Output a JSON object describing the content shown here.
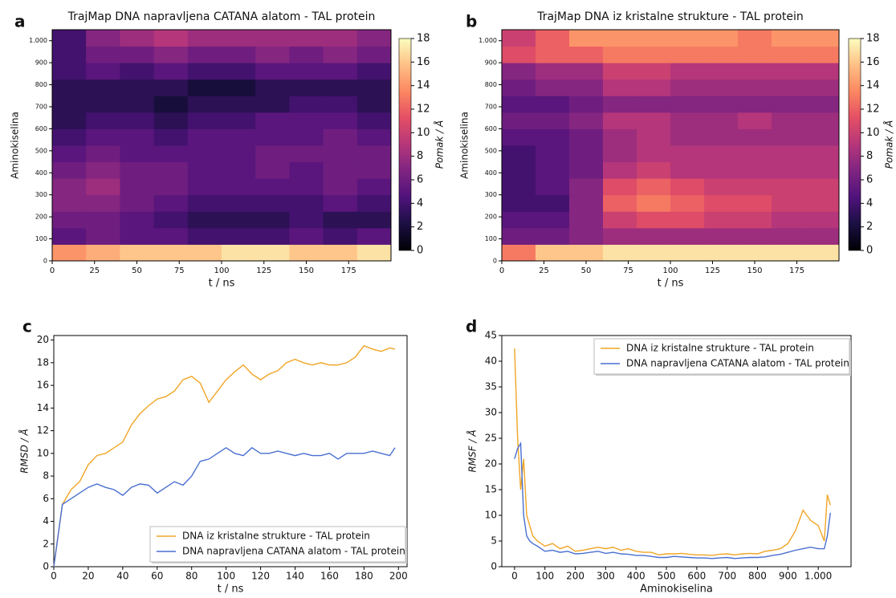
{
  "chart_data": [
    {
      "type": "heatmap",
      "panel_label": "a",
      "title": "TrajMap DNA napravljena CATANA alatom - TAL protein",
      "xlabel": "t / ns",
      "ylabel": "Aminokiselina",
      "colorbar_label": "Pomak / Å",
      "colormap": "magma",
      "x_bins": [
        0,
        20,
        40,
        60,
        80,
        100,
        120,
        140,
        160,
        180,
        200
      ],
      "y_bins": [
        0,
        75,
        150,
        225,
        300,
        375,
        450,
        525,
        600,
        675,
        750,
        825,
        900,
        975,
        1050
      ],
      "xlim": [
        0,
        200
      ],
      "ylim": [
        0,
        1050
      ],
      "clim": [
        0,
        18
      ],
      "xticks": [
        0,
        25,
        50,
        75,
        100,
        125,
        150,
        175
      ],
      "yticks": [
        0,
        100,
        200,
        300,
        400,
        500,
        600,
        700,
        800,
        900,
        {
          "value": 1000,
          "label": "1.000"
        }
      ],
      "cticks": [
        0,
        2,
        4,
        6,
        8,
        10,
        12,
        14,
        16,
        18
      ],
      "z": [
        [
          14,
          15,
          16,
          16,
          16,
          17,
          17,
          16,
          16,
          17
        ],
        [
          5,
          6,
          5,
          5,
          4,
          4,
          4,
          5,
          4,
          5
        ],
        [
          6,
          6,
          5,
          4,
          3,
          3,
          3,
          4,
          3,
          3
        ],
        [
          7,
          7,
          6,
          5,
          4,
          4,
          4,
          4,
          5,
          4
        ],
        [
          7,
          8,
          6,
          6,
          5,
          5,
          5,
          5,
          6,
          5
        ],
        [
          6,
          7,
          6,
          6,
          5,
          5,
          6,
          5,
          6,
          6
        ],
        [
          5,
          6,
          5,
          5,
          5,
          5,
          6,
          6,
          6,
          6
        ],
        [
          4,
          5,
          5,
          4,
          5,
          5,
          5,
          5,
          6,
          5
        ],
        [
          3,
          4,
          4,
          3,
          4,
          4,
          5,
          5,
          5,
          4
        ],
        [
          3,
          3,
          3,
          2,
          3,
          3,
          3,
          4,
          4,
          3
        ],
        [
          3,
          3,
          3,
          3,
          2,
          2,
          3,
          3,
          3,
          3
        ],
        [
          4,
          5,
          4,
          5,
          4,
          4,
          5,
          5,
          5,
          4
        ],
        [
          4,
          6,
          6,
          7,
          6,
          6,
          7,
          6,
          7,
          6
        ],
        [
          4,
          7,
          8,
          9,
          8,
          8,
          8,
          8,
          8,
          7
        ]
      ]
    },
    {
      "type": "heatmap",
      "panel_label": "b",
      "title": "TrajMap DNA iz kristalne strukture - TAL protein",
      "xlabel": "t / ns",
      "ylabel": "Aminokiselina",
      "colorbar_label": "Pomak / Å",
      "colormap": "magma",
      "x_bins": [
        0,
        20,
        40,
        60,
        80,
        100,
        120,
        140,
        160,
        180,
        200
      ],
      "y_bins": [
        0,
        75,
        150,
        225,
        300,
        375,
        450,
        525,
        600,
        675,
        750,
        825,
        900,
        975,
        1050
      ],
      "xlim": [
        0,
        200
      ],
      "ylim": [
        0,
        1050
      ],
      "clim": [
        0,
        18
      ],
      "xticks": [
        0,
        25,
        50,
        75,
        100,
        125,
        150,
        175
      ],
      "yticks": [
        0,
        100,
        200,
        300,
        400,
        500,
        600,
        700,
        800,
        900,
        {
          "value": 1000,
          "label": "1.000"
        }
      ],
      "cticks": [
        0,
        2,
        4,
        6,
        8,
        10,
        12,
        14,
        16,
        18
      ],
      "z": [
        [
          13,
          16,
          16,
          17,
          17,
          17,
          17,
          17,
          17,
          17
        ],
        [
          6,
          6,
          7,
          8,
          8,
          8,
          8,
          8,
          8,
          8
        ],
        [
          5,
          5,
          7,
          10,
          11,
          11,
          10,
          10,
          9,
          9
        ],
        [
          4,
          4,
          7,
          12,
          13,
          12,
          11,
          11,
          10,
          10
        ],
        [
          4,
          5,
          7,
          11,
          12,
          11,
          10,
          10,
          10,
          10
        ],
        [
          4,
          5,
          6,
          9,
          10,
          9,
          9,
          9,
          9,
          9
        ],
        [
          4,
          5,
          6,
          8,
          9,
          9,
          9,
          9,
          9,
          9
        ],
        [
          5,
          5,
          6,
          8,
          9,
          8,
          8,
          8,
          8,
          8
        ],
        [
          6,
          6,
          7,
          9,
          9,
          8,
          8,
          9,
          8,
          8
        ],
        [
          5,
          5,
          6,
          7,
          7,
          7,
          7,
          7,
          7,
          7
        ],
        [
          6,
          7,
          7,
          9,
          9,
          8,
          8,
          8,
          8,
          8
        ],
        [
          7,
          8,
          8,
          10,
          10,
          9,
          9,
          9,
          9,
          9
        ],
        [
          11,
          12,
          12,
          13,
          13,
          13,
          13,
          13,
          13,
          13
        ],
        [
          10,
          12,
          14,
          14,
          14,
          14,
          14,
          13,
          14,
          14
        ]
      ]
    },
    {
      "type": "line",
      "panel_label": "c",
      "xlabel": "t / ns",
      "ylabel": "RMSD / Å",
      "legend": "lower right",
      "xlim": [
        0,
        205
      ],
      "ylim": [
        0,
        20.4
      ],
      "xticks": [
        0,
        20,
        40,
        60,
        80,
        100,
        120,
        140,
        160,
        180,
        200
      ],
      "yticks": [
        0,
        2,
        4,
        6,
        8,
        10,
        12,
        14,
        16,
        18,
        20
      ],
      "x": [
        0,
        5,
        10,
        15,
        20,
        25,
        30,
        35,
        40,
        45,
        50,
        55,
        60,
        65,
        70,
        75,
        80,
        85,
        90,
        95,
        100,
        105,
        110,
        115,
        120,
        125,
        130,
        135,
        140,
        145,
        150,
        155,
        160,
        165,
        170,
        175,
        180,
        185,
        190,
        195,
        198
      ],
      "series": [
        {
          "name": "DNA iz kristalne strukture - TAL protein",
          "color": "#f0a526",
          "values": [
            0,
            5.5,
            6.8,
            7.5,
            9,
            9.8,
            10,
            10.5,
            11,
            12.5,
            13.5,
            14.2,
            14.8,
            15,
            15.5,
            16.5,
            16.8,
            16.2,
            14.5,
            15.5,
            16.5,
            17.2,
            17.8,
            17,
            16.5,
            17,
            17.3,
            18,
            18.3,
            18,
            17.8,
            18,
            17.8,
            17.8,
            18,
            18.5,
            19.5,
            19.2,
            19,
            19.3,
            19.2
          ]
        },
        {
          "name": "DNA napravljena CATANA alatom - TAL protein",
          "color": "#4a6fd0",
          "values": [
            0,
            5.5,
            6,
            6.5,
            7,
            7.3,
            7,
            6.8,
            6.3,
            7,
            7.3,
            7.2,
            6.5,
            7,
            7.5,
            7.2,
            8,
            9.3,
            9.5,
            10,
            10.5,
            10,
            9.8,
            10.5,
            10,
            10,
            10.2,
            10,
            9.8,
            10,
            9.8,
            9.8,
            10,
            9.5,
            10,
            10,
            10,
            10.2,
            10,
            9.8,
            10.5
          ]
        }
      ]
    },
    {
      "type": "line",
      "panel_label": "d",
      "xlabel": "Aminokiselina",
      "ylabel": "RMSF / Å",
      "legend": "upper right",
      "xlim": [
        -42,
        1108
      ],
      "ylim": [
        0,
        45
      ],
      "xticks": [
        0,
        100,
        200,
        300,
        400,
        500,
        600,
        700,
        800,
        900,
        {
          "value": 1000,
          "label": "1.000"
        }
      ],
      "yticks": [
        0,
        5,
        10,
        15,
        20,
        25,
        30,
        35,
        40,
        45
      ],
      "x": [
        0,
        10,
        20,
        30,
        40,
        50,
        60,
        75,
        100,
        125,
        150,
        175,
        200,
        225,
        250,
        275,
        300,
        325,
        350,
        375,
        400,
        425,
        450,
        475,
        500,
        525,
        550,
        575,
        600,
        625,
        650,
        675,
        700,
        725,
        750,
        775,
        800,
        825,
        850,
        875,
        900,
        925,
        950,
        975,
        1000,
        1020,
        1030,
        1040
      ],
      "series": [
        {
          "name": "DNA iz kristalne strukture - TAL protein",
          "color": "#f0a526",
          "values": [
            42.5,
            25,
            15,
            21,
            10,
            8,
            6,
            5,
            4,
            4.5,
            3.5,
            4,
            3,
            3.2,
            3.5,
            3.8,
            3.5,
            3.8,
            3.2,
            3.5,
            3,
            2.8,
            2.8,
            2.3,
            2.5,
            2.5,
            2.6,
            2.4,
            2.3,
            2.3,
            2.2,
            2.4,
            2.5,
            2.3,
            2.5,
            2.6,
            2.5,
            3,
            3.2,
            3.5,
            4.5,
            7,
            11,
            9,
            8,
            5,
            14,
            12
          ]
        },
        {
          "name": "DNA napravljena CATANA alatom - TAL protein",
          "color": "#4a6fd0",
          "values": [
            21,
            23,
            24,
            10,
            6,
            5,
            4.5,
            4,
            3,
            3.2,
            2.8,
            3,
            2.5,
            2.6,
            2.8,
            3,
            2.6,
            2.8,
            2.5,
            2.4,
            2.2,
            2.2,
            2,
            1.8,
            1.8,
            2,
            1.9,
            1.8,
            1.7,
            1.7,
            1.6,
            1.7,
            1.8,
            1.6,
            1.7,
            1.8,
            1.8,
            1.9,
            2.2,
            2.4,
            2.8,
            3.2,
            3.5,
            3.8,
            3.5,
            3.5,
            6,
            10.5
          ]
        }
      ]
    }
  ]
}
